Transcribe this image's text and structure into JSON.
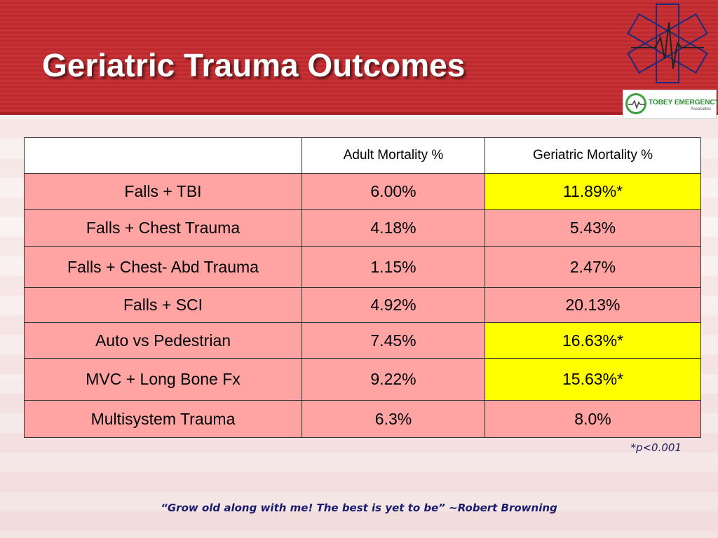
{
  "slide": {
    "title": "Geriatric Trauma Outcomes",
    "logo_text_main": "TOBEY EMERGENCY",
    "logo_text_sub": "Associates",
    "footnote": "*p<0.001",
    "quote": "“Grow old along with me! The best is yet to be” ~Robert Browning"
  },
  "colors": {
    "header_red": "#c83236",
    "cell_pink": "#ffa3a3",
    "highlight_yellow": "#ffff00",
    "quote_navy": "#1c1c6e"
  },
  "icons": [
    "star-of-life-flag-icon",
    "tobey-emergency-logo-icon"
  ],
  "table": {
    "headers": [
      "",
      "Adult Mortality %",
      "Geriatric Mortality %"
    ],
    "rows": [
      {
        "label": "Falls + TBI",
        "adult": "6.00%",
        "geriatric": "11.89%*",
        "highlight": true
      },
      {
        "label": "Falls + Chest Trauma",
        "adult": "4.18%",
        "geriatric": "5.43%",
        "highlight": false
      },
      {
        "label": "Falls + Chest- Abd Trauma",
        "adult": "1.15%",
        "geriatric": "2.47%",
        "highlight": false
      },
      {
        "label": "Falls + SCI",
        "adult": "4.92%",
        "geriatric": "20.13%",
        "highlight": false
      },
      {
        "label": "Auto vs Pedestrian",
        "adult": "7.45%",
        "geriatric": "16.63%*",
        "highlight": true
      },
      {
        "label": "MVC + Long Bone Fx",
        "adult": "9.22%",
        "geriatric": "15.63%*",
        "highlight": true
      },
      {
        "label": "Multisystem Trauma",
        "adult": "6.3%",
        "geriatric": "8.0%",
        "highlight": false
      }
    ]
  }
}
